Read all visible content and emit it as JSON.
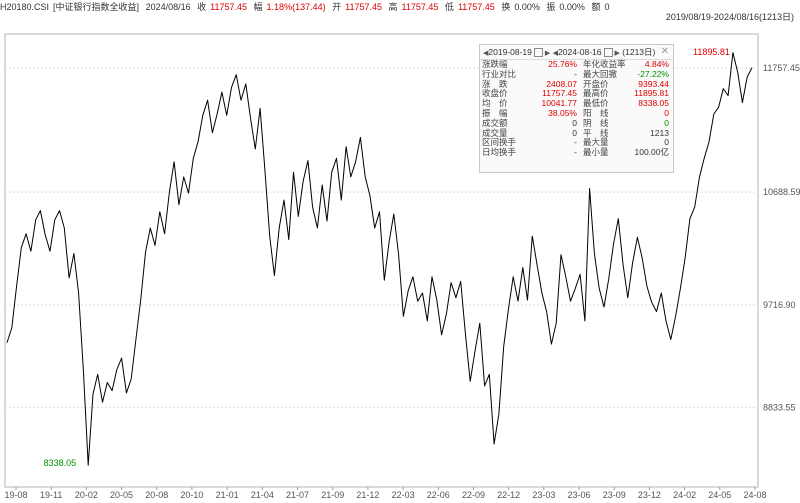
{
  "header": {
    "code": "H20180.CSI",
    "name": "[中证银行指数全收益]",
    "date": "2024/08/16",
    "close_label": "收",
    "close": "11757.45",
    "change_label": "幅",
    "change": "1.18%(137.44)",
    "open_label": "开",
    "open": "11757.45",
    "high_label": "高",
    "high": "11757.45",
    "low_label": "低",
    "low": "11757.45",
    "turnover_label": "换",
    "turnover": "0.00%",
    "amplitude_label": "振",
    "amplitude": "0.00%",
    "amount_label": "额",
    "amount": "0"
  },
  "range_label": "2019/08/19-2024/08/16(1213日)",
  "panel": {
    "start_date": "2019-08-19",
    "end_date": "2024-08-16",
    "days": "(1213日)",
    "rows": [
      [
        "涨跌幅",
        "25.76%",
        "年化收益率",
        "4.84%"
      ],
      [
        "行业对比",
        "-",
        "最大回撤",
        "-27.22%"
      ],
      [
        "涨　跌",
        "2408.07",
        "开盘价",
        "9393.44"
      ],
      [
        "收盘价",
        "11757.45",
        "最高价",
        "11895.81"
      ],
      [
        "均　价",
        "10041.77",
        "最低价",
        "8338.05"
      ],
      [
        "振　幅",
        "38.05%",
        "阳　线",
        "0"
      ],
      [
        "成交额",
        "0",
        "阴　线",
        "0"
      ],
      [
        "成交量",
        "0",
        "平　线",
        "1213"
      ],
      [
        "区间换手",
        "-",
        "最大量",
        "0"
      ],
      [
        "日均换手",
        "-",
        "最小量",
        "100.00亿"
      ]
    ],
    "value_colors": [
      [
        "#e00000",
        "#e00000"
      ],
      [
        "#333333",
        "#009000"
      ],
      [
        "#e00000",
        "#e00000"
      ],
      [
        "#e00000",
        "#e00000"
      ],
      [
        "#e00000",
        "#e00000"
      ],
      [
        "#e00000",
        "#e00000"
      ],
      [
        "#333333",
        "#009000"
      ],
      [
        "#333333",
        "#333333"
      ],
      [
        "#333333",
        "#333333"
      ],
      [
        "#333333",
        "#333333"
      ]
    ]
  },
  "colors": {
    "line": "#000000",
    "grid": "#dcdcdc",
    "up": "#e00000",
    "down": "#009000",
    "axis_text": "#555555"
  },
  "chart_data": {
    "type": "line",
    "title": "",
    "xlabel": "",
    "ylabel": "",
    "ylim": [
      8150,
      12050
    ],
    "yticks": [
      11757.45,
      10688.59,
      9716.9,
      8833.55
    ],
    "ytick_labels": [
      "11757.45",
      "10688.59",
      "9716.90",
      "8833.55"
    ],
    "xticks": [
      "19-08",
      "19-11",
      "20-02",
      "20-05",
      "20-08",
      "20-10",
      "21-01",
      "21-04",
      "21-07",
      "21-09",
      "21-12",
      "22-03",
      "22-06",
      "22-09",
      "22-12",
      "23-03",
      "23-06",
      "23-09",
      "23-12",
      "24-02",
      "24-05",
      "24-08"
    ],
    "max_label": "11895.81",
    "min_label": "8338.05",
    "series": [
      {
        "values": [
          9393,
          9520,
          9880,
          10210,
          10330,
          10180,
          10450,
          10530,
          10320,
          10180,
          10450,
          10530,
          10380,
          9950,
          10160,
          9820,
          9150,
          8338,
          8950,
          9120,
          8880,
          9050,
          8980,
          9160,
          9260,
          8960,
          9080,
          9420,
          9760,
          10170,
          10380,
          10230,
          10520,
          10330,
          10690,
          10950,
          10580,
          10820,
          10680,
          10980,
          11120,
          11350,
          11480,
          11200,
          11360,
          11550,
          11350,
          11590,
          11700,
          11480,
          11620,
          11320,
          11060,
          11410,
          10880,
          10310,
          9970,
          10380,
          10620,
          10280,
          10860,
          10480,
          10780,
          10960,
          10560,
          10380,
          10750,
          10440,
          10860,
          10980,
          10620,
          11080,
          10820,
          10950,
          11160,
          10820,
          10660,
          10380,
          10520,
          9930,
          10260,
          10500,
          10150,
          9620,
          9840,
          9960,
          9750,
          9820,
          9580,
          9960,
          9760,
          9460,
          9640,
          9910,
          9780,
          9920,
          9460,
          9060,
          9320,
          9560,
          9020,
          9120,
          8520,
          8780,
          9360,
          9680,
          9960,
          9750,
          10040,
          9760,
          10310,
          10060,
          9820,
          9660,
          9380,
          9560,
          10150,
          9960,
          9750,
          9860,
          9980,
          9580,
          10720,
          10160,
          9860,
          9700,
          9940,
          10240,
          10460,
          10060,
          9780,
          10080,
          10300,
          10120,
          9880,
          9740,
          9660,
          9820,
          9580,
          9420,
          9620,
          9860,
          10120,
          10460,
          10560,
          10820,
          10980,
          11120,
          11360,
          11420,
          11580,
          11520,
          11890,
          11720,
          11460,
          11680,
          11760
        ]
      }
    ]
  }
}
